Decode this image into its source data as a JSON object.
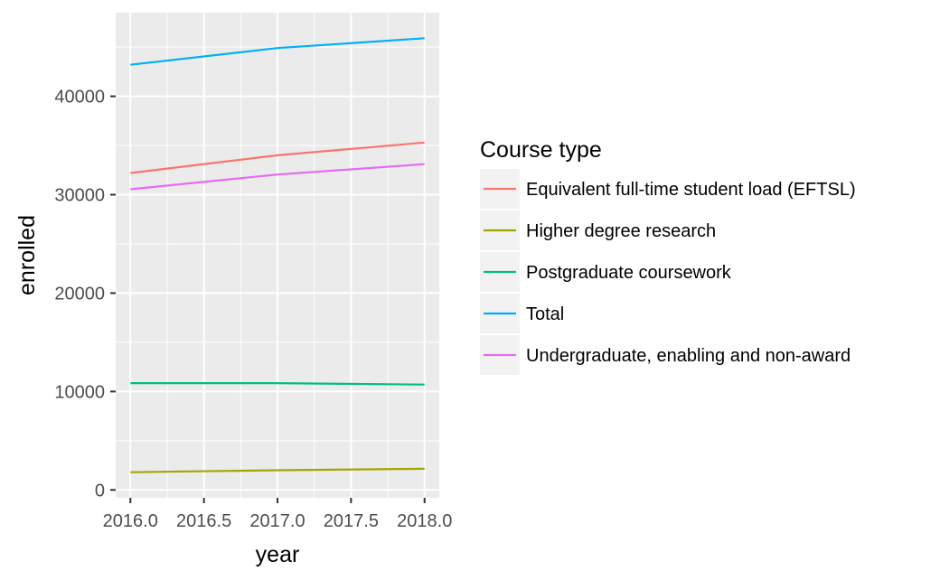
{
  "chart_data": {
    "type": "line",
    "xlabel": "year",
    "ylabel": "enrolled",
    "xlim": [
      2015.9,
      2018.1
    ],
    "ylim": [
      -800,
      48500
    ],
    "x_ticks": [
      2016.0,
      2016.5,
      2017.0,
      2017.5,
      2018.0
    ],
    "x_tick_labels": [
      "2016.0",
      "2016.5",
      "2017.0",
      "2017.5",
      "2018.0"
    ],
    "y_ticks": [
      0,
      10000,
      20000,
      30000,
      40000
    ],
    "y_tick_labels": [
      "0",
      "10000",
      "20000",
      "30000",
      "40000"
    ],
    "grid": true,
    "legend": {
      "title": "Course type",
      "placement": "right"
    },
    "x": [
      2016,
      2017,
      2018
    ],
    "series": [
      {
        "name": "Equivalent full-time student load (EFTSL)",
        "color": "#F8766D",
        "values": [
          32200,
          34000,
          35300
        ]
      },
      {
        "name": "Higher degree research",
        "color": "#A3A500",
        "values": [
          1800,
          2000,
          2150
        ]
      },
      {
        "name": "Postgraduate coursework",
        "color": "#00BF7D",
        "values": [
          10850,
          10850,
          10700
        ]
      },
      {
        "name": "Total",
        "color": "#00B0F6",
        "values": [
          43200,
          44900,
          45900
        ]
      },
      {
        "name": "Undergraduate, enabling and non-award",
        "color": "#E76BF3",
        "values": [
          30550,
          32050,
          33100
        ]
      }
    ]
  }
}
